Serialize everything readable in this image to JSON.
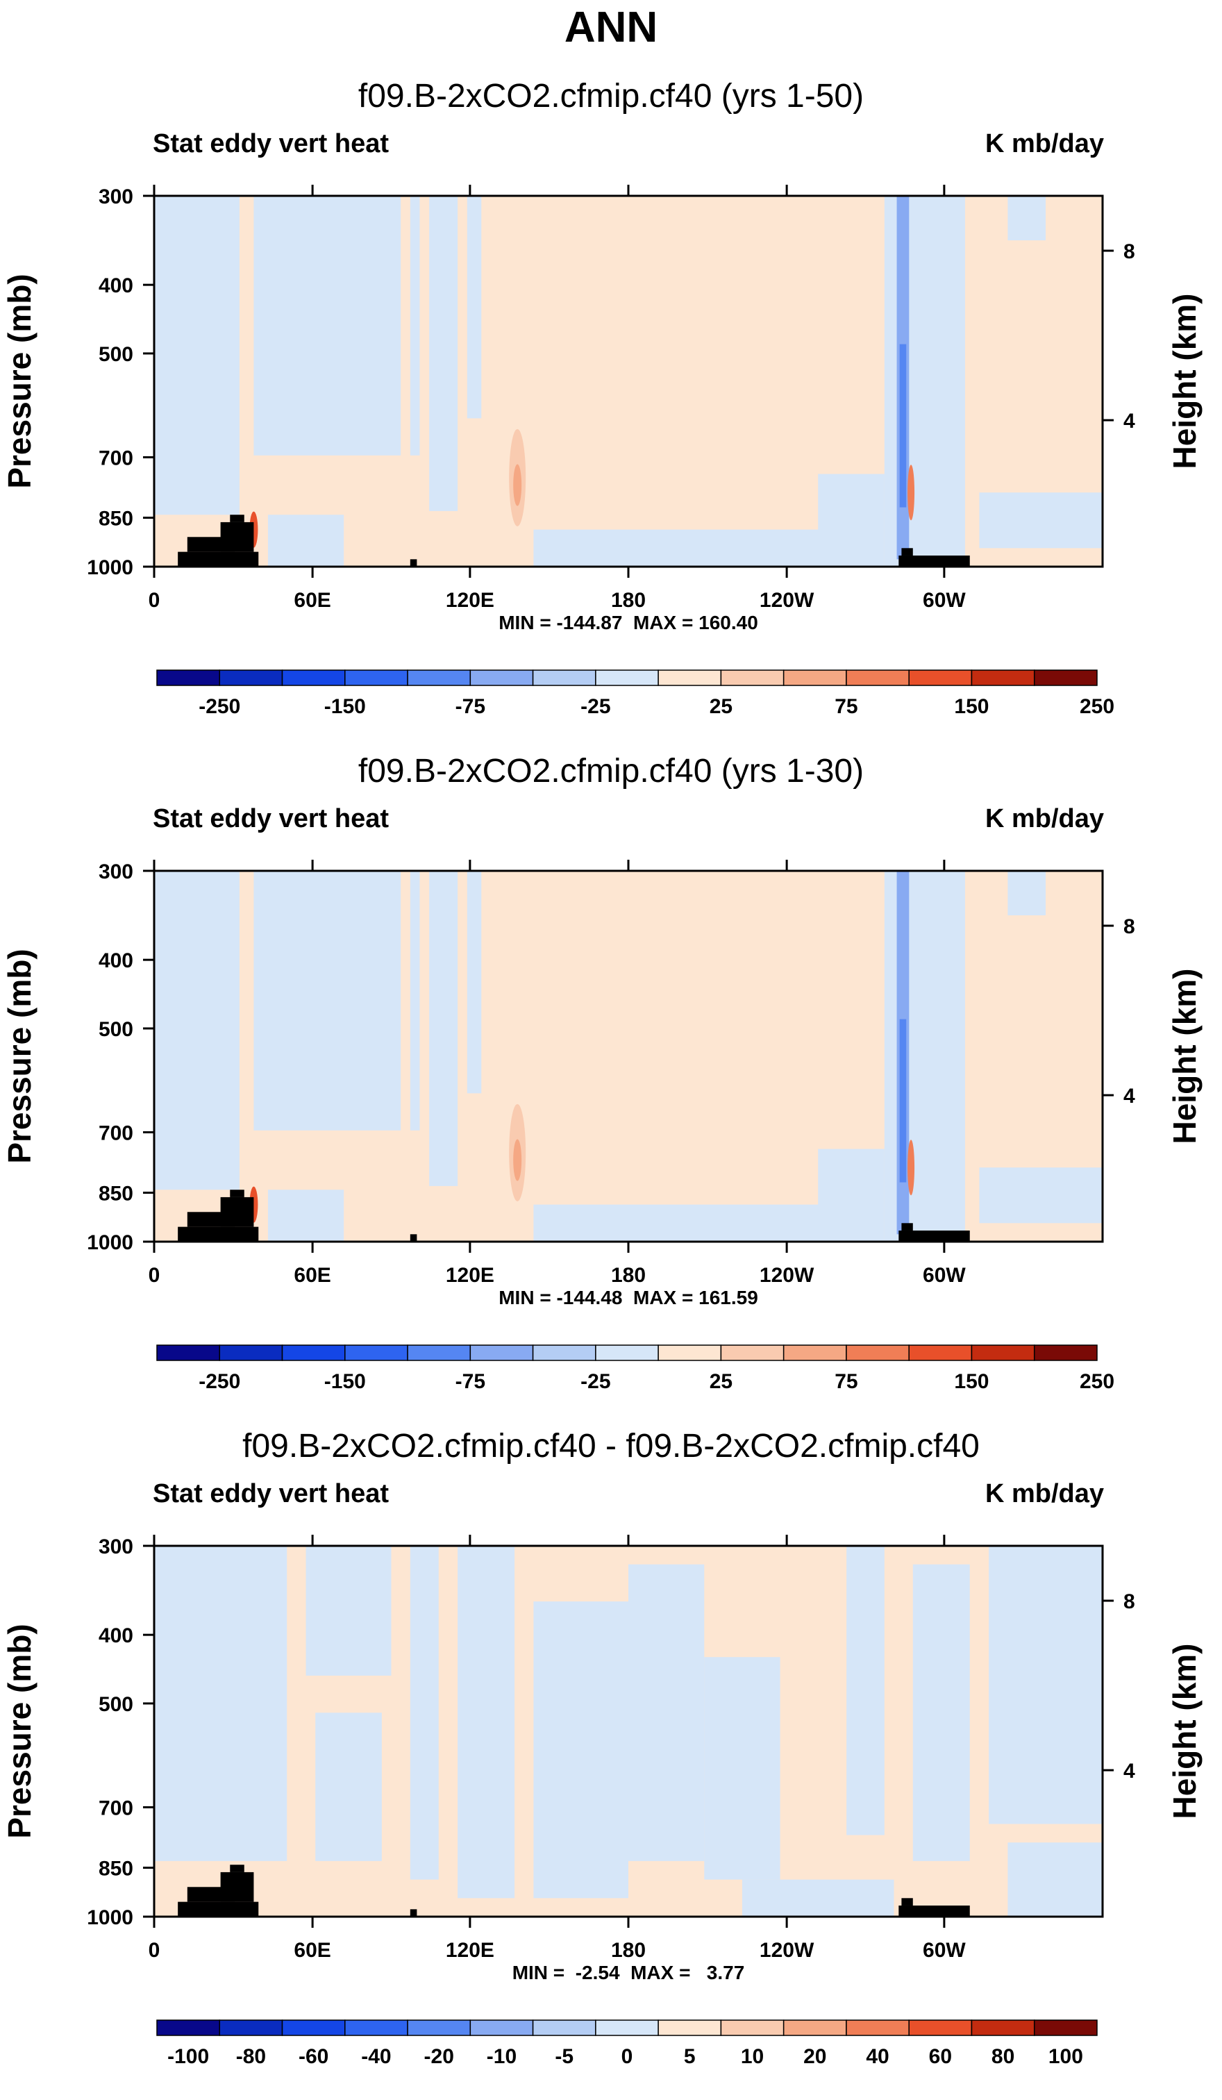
{
  "figure_title": "ANN",
  "chart_data": [
    {
      "type": "heatmap",
      "title": "f09.B-2xCO2.cfmip.cf40 (yrs 1-50)",
      "left_label": "Stat eddy vert heat",
      "right_label": "K mb/day",
      "ylabel": "Pressure (mb)",
      "y2label": "Height (km)",
      "x_ticks": [
        "0",
        "60E",
        "120E",
        "180",
        "120W",
        "60W"
      ],
      "y_ticks": [
        "300",
        "400",
        "500",
        "700",
        "850",
        "1000"
      ],
      "y2_ticks": [
        "8",
        "4"
      ],
      "min_max": "MIN = -144.87  MAX = 160.40",
      "colorbar_labels": [
        "-250",
        "-150",
        "-75",
        "-25",
        "25",
        "75",
        "150",
        "250"
      ],
      "range": [
        -144.87,
        160.4
      ]
    },
    {
      "type": "heatmap",
      "title": "f09.B-2xCO2.cfmip.cf40 (yrs 1-30)",
      "left_label": "Stat eddy vert heat",
      "right_label": "K mb/day",
      "ylabel": "Pressure (mb)",
      "y2label": "Height (km)",
      "x_ticks": [
        "0",
        "60E",
        "120E",
        "180",
        "120W",
        "60W"
      ],
      "y_ticks": [
        "300",
        "400",
        "500",
        "700",
        "850",
        "1000"
      ],
      "y2_ticks": [
        "8",
        "4"
      ],
      "min_max": "MIN = -144.48  MAX = 161.59",
      "colorbar_labels": [
        "-250",
        "-150",
        "-75",
        "-25",
        "25",
        "75",
        "150",
        "250"
      ],
      "range": [
        -144.48,
        161.59
      ]
    },
    {
      "type": "heatmap",
      "title": "f09.B-2xCO2.cfmip.cf40 - f09.B-2xCO2.cfmip.cf40",
      "left_label": "Stat eddy vert heat",
      "right_label": "K mb/day",
      "ylabel": "Pressure (mb)",
      "y2label": "Height (km)",
      "x_ticks": [
        "0",
        "60E",
        "120E",
        "180",
        "120W",
        "60W"
      ],
      "y_ticks": [
        "300",
        "400",
        "500",
        "700",
        "850",
        "1000"
      ],
      "y2_ticks": [
        "8",
        "4"
      ],
      "min_max": "MIN =  -2.54  MAX =   3.77",
      "colorbar_labels": [
        "-100",
        "-80",
        "-60",
        "-40",
        "-20",
        "-10",
        "-5",
        "0",
        "5",
        "10",
        "20",
        "40",
        "60",
        "80",
        "100"
      ],
      "range": [
        -2.54,
        3.77
      ]
    }
  ],
  "colors": {
    "colorbar": [
      "#08088a",
      "#0a2cc0",
      "#1446e6",
      "#2e64f0",
      "#5586f2",
      "#88aaf2",
      "#b4cdf4",
      "#d6e6f8",
      "#fde6d2",
      "#f9cbb0",
      "#f5a884",
      "#f07e56",
      "#e8502a",
      "#c42c10",
      "#7a0a06"
    ],
    "neg_light": "#d6e6f8",
    "pos_light": "#fde6d2",
    "topo": "#000000"
  }
}
